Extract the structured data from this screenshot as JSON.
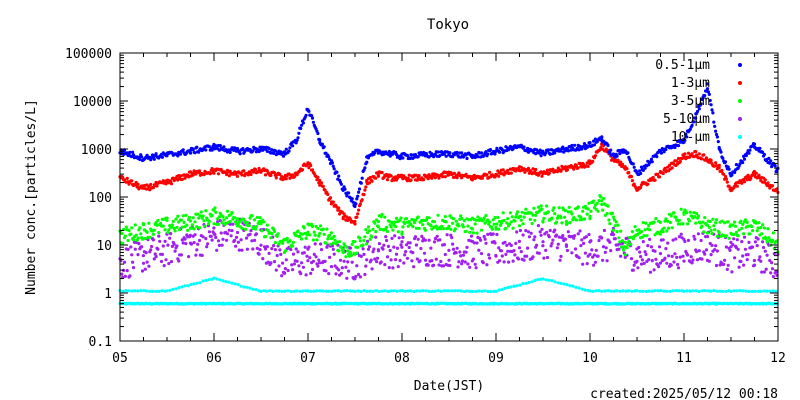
{
  "chart_data": {
    "type": "scatter",
    "title": "Tokyo",
    "xlabel": "Date(JST)",
    "ylabel": "Number conc.[particles/L]",
    "x_scale": "linear",
    "y_scale": "log",
    "xlim": [
      "2025-05-05",
      "2025-05-12"
    ],
    "ylim": [
      0.1,
      100000
    ],
    "x_tick_labels": [
      "05",
      "06",
      "07",
      "08",
      "09",
      "10",
      "11",
      "12"
    ],
    "y_tick_labels": [
      "0.1",
      "1",
      "10",
      "100",
      "1000",
      "10000",
      "100000"
    ],
    "y_tick_values": [
      0.1,
      1,
      10,
      100,
      1000,
      10000,
      100000
    ],
    "legend_position": "top-right",
    "grid": false,
    "series": [
      {
        "name": "0.5-1μm",
        "color": "#0000ff",
        "x": [
          "2025-05-05T00:00",
          "2025-05-05T06:00",
          "2025-05-05T12:00",
          "2025-05-05T18:00",
          "2025-05-06T00:00",
          "2025-05-06T06:00",
          "2025-05-06T12:00",
          "2025-05-06T18:00",
          "2025-05-06T21:00",
          "2025-05-07T00:00",
          "2025-05-07T03:00",
          "2025-05-07T06:00",
          "2025-05-07T09:00",
          "2025-05-07T12:00",
          "2025-05-07T15:00",
          "2025-05-07T18:00",
          "2025-05-07T21:00",
          "2025-05-08T00:00",
          "2025-05-08T06:00",
          "2025-05-08T12:00",
          "2025-05-08T18:00",
          "2025-05-09T00:00",
          "2025-05-09T06:00",
          "2025-05-09T12:00",
          "2025-05-09T18:00",
          "2025-05-10T00:00",
          "2025-05-10T03:00",
          "2025-05-10T06:00",
          "2025-05-10T09:00",
          "2025-05-10T12:00",
          "2025-05-10T18:00",
          "2025-05-11T00:00",
          "2025-05-11T03:00",
          "2025-05-11T06:00",
          "2025-05-11T09:00",
          "2025-05-11T12:00",
          "2025-05-11T18:00",
          "2025-05-12T00:00"
        ],
        "values": [
          900,
          650,
          750,
          900,
          1100,
          900,
          1000,
          800,
          1500,
          7000,
          1500,
          500,
          150,
          70,
          600,
          900,
          800,
          700,
          750,
          800,
          700,
          900,
          1100,
          800,
          1000,
          1200,
          1700,
          700,
          1000,
          300,
          900,
          1500,
          5000,
          20000,
          1000,
          300,
          1200,
          350
        ]
      },
      {
        "name": "1-3μm",
        "color": "#ff0000",
        "x": [
          "2025-05-05T00:00",
          "2025-05-05T06:00",
          "2025-05-05T12:00",
          "2025-05-05T18:00",
          "2025-05-06T00:00",
          "2025-05-06T06:00",
          "2025-05-06T12:00",
          "2025-05-06T18:00",
          "2025-05-06T21:00",
          "2025-05-07T00:00",
          "2025-05-07T03:00",
          "2025-05-07T06:00",
          "2025-05-07T09:00",
          "2025-05-07T12:00",
          "2025-05-07T15:00",
          "2025-05-07T18:00",
          "2025-05-07T21:00",
          "2025-05-08T00:00",
          "2025-05-08T06:00",
          "2025-05-08T12:00",
          "2025-05-08T18:00",
          "2025-05-09T00:00",
          "2025-05-09T06:00",
          "2025-05-09T12:00",
          "2025-05-09T18:00",
          "2025-05-10T00:00",
          "2025-05-10T03:00",
          "2025-05-10T06:00",
          "2025-05-10T09:00",
          "2025-05-10T12:00",
          "2025-05-10T18:00",
          "2025-05-11T00:00",
          "2025-05-11T03:00",
          "2025-05-11T06:00",
          "2025-05-11T09:00",
          "2025-05-11T12:00",
          "2025-05-11T18:00",
          "2025-05-12T00:00"
        ],
        "values": [
          250,
          150,
          200,
          300,
          350,
          300,
          350,
          250,
          300,
          500,
          200,
          80,
          40,
          30,
          200,
          300,
          250,
          250,
          250,
          300,
          250,
          300,
          400,
          300,
          400,
          500,
          1200,
          600,
          400,
          150,
          300,
          700,
          800,
          600,
          400,
          150,
          300,
          130
        ]
      },
      {
        "name": "3-5μm",
        "color": "#00ff00",
        "x": [
          "2025-05-05T00:00",
          "2025-05-05T06:00",
          "2025-05-05T12:00",
          "2025-05-05T18:00",
          "2025-05-06T00:00",
          "2025-05-06T06:00",
          "2025-05-06T12:00",
          "2025-05-06T18:00",
          "2025-05-07T00:00",
          "2025-05-07T06:00",
          "2025-05-07T09:00",
          "2025-05-07T12:00",
          "2025-05-07T18:00",
          "2025-05-08T00:00",
          "2025-05-08T06:00",
          "2025-05-08T12:00",
          "2025-05-08T18:00",
          "2025-05-09T00:00",
          "2025-05-09T06:00",
          "2025-05-09T12:00",
          "2025-05-09T18:00",
          "2025-05-10T00:00",
          "2025-05-10T03:00",
          "2025-05-10T06:00",
          "2025-05-10T09:00",
          "2025-05-10T12:00",
          "2025-05-10T18:00",
          "2025-05-11T00:00",
          "2025-05-11T06:00",
          "2025-05-11T12:00",
          "2025-05-11T18:00",
          "2025-05-12T00:00"
        ],
        "values": [
          15,
          20,
          25,
          30,
          40,
          35,
          25,
          10,
          20,
          15,
          8,
          8,
          30,
          25,
          30,
          30,
          25,
          30,
          35,
          45,
          40,
          50,
          80,
          30,
          8,
          20,
          25,
          40,
          25,
          20,
          25,
          10
        ]
      },
      {
        "name": "5-10μm",
        "color": "#a020f0",
        "x": [
          "2025-05-05T00:00",
          "2025-05-05T06:00",
          "2025-05-05T12:00",
          "2025-05-05T18:00",
          "2025-05-06T00:00",
          "2025-05-06T06:00",
          "2025-05-06T12:00",
          "2025-05-06T18:00",
          "2025-05-07T00:00",
          "2025-05-07T06:00",
          "2025-05-07T12:00",
          "2025-05-07T18:00",
          "2025-05-08T00:00",
          "2025-05-08T06:00",
          "2025-05-08T12:00",
          "2025-05-08T18:00",
          "2025-05-09T00:00",
          "2025-05-09T06:00",
          "2025-05-09T12:00",
          "2025-05-09T18:00",
          "2025-05-10T00:00",
          "2025-05-10T06:00",
          "2025-05-10T12:00",
          "2025-05-10T18:00",
          "2025-05-11T00:00",
          "2025-05-11T06:00",
          "2025-05-11T12:00",
          "2025-05-11T18:00",
          "2025-05-12T00:00"
        ],
        "values": [
          4,
          6,
          8,
          12,
          15,
          18,
          12,
          4,
          5,
          5,
          4,
          8,
          7,
          8,
          8,
          7,
          8,
          9,
          12,
          10,
          8,
          10,
          6,
          6,
          8,
          10,
          6,
          7,
          4
        ]
      },
      {
        "name": "10-μm",
        "color": "#00ffff",
        "x": [
          "2025-05-05T00:00",
          "2025-05-05T12:00",
          "2025-05-06T00:00",
          "2025-05-06T12:00",
          "2025-05-07T00:00",
          "2025-05-07T12:00",
          "2025-05-08T00:00",
          "2025-05-08T12:00",
          "2025-05-09T00:00",
          "2025-05-09T12:00",
          "2025-05-10T00:00",
          "2025-05-10T12:00",
          "2025-05-11T00:00",
          "2025-05-11T12:00",
          "2025-05-12T00:00"
        ],
        "values": [
          0.6,
          0.6,
          0.6,
          0.6,
          0.6,
          0.6,
          0.6,
          0.6,
          0.6,
          0.6,
          0.6,
          0.6,
          0.6,
          0.6,
          0.6
        ],
        "values_secondary": [
          1.1,
          1.1,
          2,
          1.1,
          1.1,
          1.1,
          1.1,
          1.1,
          1.1,
          2,
          1.1,
          1.1,
          1.1,
          1.1,
          1.1
        ]
      }
    ]
  },
  "footer": {
    "created": "created:2025/05/12 00:18"
  }
}
